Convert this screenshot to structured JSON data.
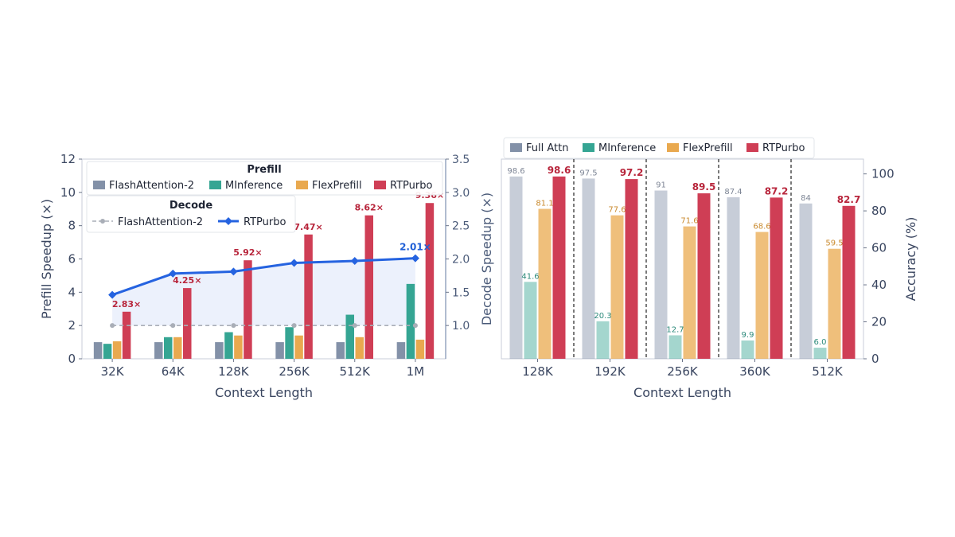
{
  "colors": {
    "flashattention": "#8391a8",
    "minference": "#35a593",
    "flexprefill": "#e9a94f",
    "rtpurbo": "#cf3e55",
    "decode_rtpurbo": "#2563e0",
    "decode_flash": "#a9aeb7",
    "label_red": "#b8263c",
    "label_blue": "#1f5fd6",
    "axis_text": "#3a4660",
    "band": "#e9eefb"
  },
  "chart_data": [
    {
      "type": "bar",
      "xlabel": "Context Length",
      "ylabel": "Prefill Speedup (×)",
      "y2label": "Decode Speedup (×)",
      "categories": [
        "32K",
        "64K",
        "128K",
        "256K",
        "512K",
        "1M"
      ],
      "ylim": [
        0,
        12
      ],
      "yticks": [
        "0",
        "2",
        "4",
        "6",
        "8",
        "10",
        "12"
      ],
      "y2lim": [
        0.5,
        3.5
      ],
      "y2ticks": [
        "1.0",
        "1.5",
        "2.0",
        "2.5",
        "3.0",
        "3.5"
      ],
      "legend_prefill_title": "Prefill",
      "legend_decode_title": "Decode",
      "series": [
        {
          "name": "FlashAttention-2",
          "values": [
            1.0,
            1.0,
            1.0,
            1.0,
            1.0,
            1.0
          ]
        },
        {
          "name": "MInference",
          "values": [
            0.9,
            1.3,
            1.6,
            1.9,
            2.65,
            4.5
          ]
        },
        {
          "name": "FlexPrefill",
          "values": [
            1.05,
            1.3,
            1.4,
            1.4,
            1.3,
            1.15
          ]
        },
        {
          "name": "RTPurbo",
          "values": [
            2.83,
            4.25,
            5.92,
            7.47,
            8.62,
            9.36
          ]
        }
      ],
      "rtpurbo_labels": [
        "2.83×",
        "4.25×",
        "5.92×",
        "7.47×",
        "8.62×",
        "9.36×"
      ],
      "decode_series": [
        {
          "name": "FlashAttention-2",
          "values": [
            1.0,
            1.0,
            1.0,
            1.0,
            1.0,
            1.0
          ]
        },
        {
          "name": "RTPurbo",
          "values": [
            1.46,
            1.78,
            1.81,
            1.94,
            1.97,
            2.01
          ]
        }
      ],
      "decode_label": "2.01×"
    },
    {
      "type": "bar",
      "xlabel": "Context Length",
      "ylabel": "Accuracy (%)",
      "categories": [
        "128K",
        "192K",
        "256K",
        "360K",
        "512K"
      ],
      "ylim": [
        0,
        108
      ],
      "yticks": [
        "0",
        "20",
        "40",
        "60",
        "80",
        "100"
      ],
      "series": [
        {
          "name": "Full Attn",
          "values": [
            98.6,
            97.5,
            91,
            87.4,
            84
          ],
          "labels": [
            "98.6",
            "97.5",
            "91",
            "87.4",
            "84"
          ]
        },
        {
          "name": "MInference",
          "values": [
            41.6,
            20.3,
            12.7,
            9.9,
            6.0
          ],
          "labels": [
            "41.6",
            "20.3",
            "12.7",
            "9.9",
            "6.0"
          ]
        },
        {
          "name": "FlexPrefill",
          "values": [
            81.1,
            77.6,
            71.6,
            68.6,
            59.5
          ],
          "labels": [
            "81.1",
            "77.6",
            "71.6",
            "68.6",
            "59.5"
          ]
        },
        {
          "name": "RTPurbo",
          "values": [
            98.6,
            97.2,
            89.5,
            87.2,
            82.7
          ],
          "labels": [
            "98.6",
            "97.2",
            "89.5",
            "87.2",
            "82.7"
          ]
        }
      ]
    }
  ]
}
